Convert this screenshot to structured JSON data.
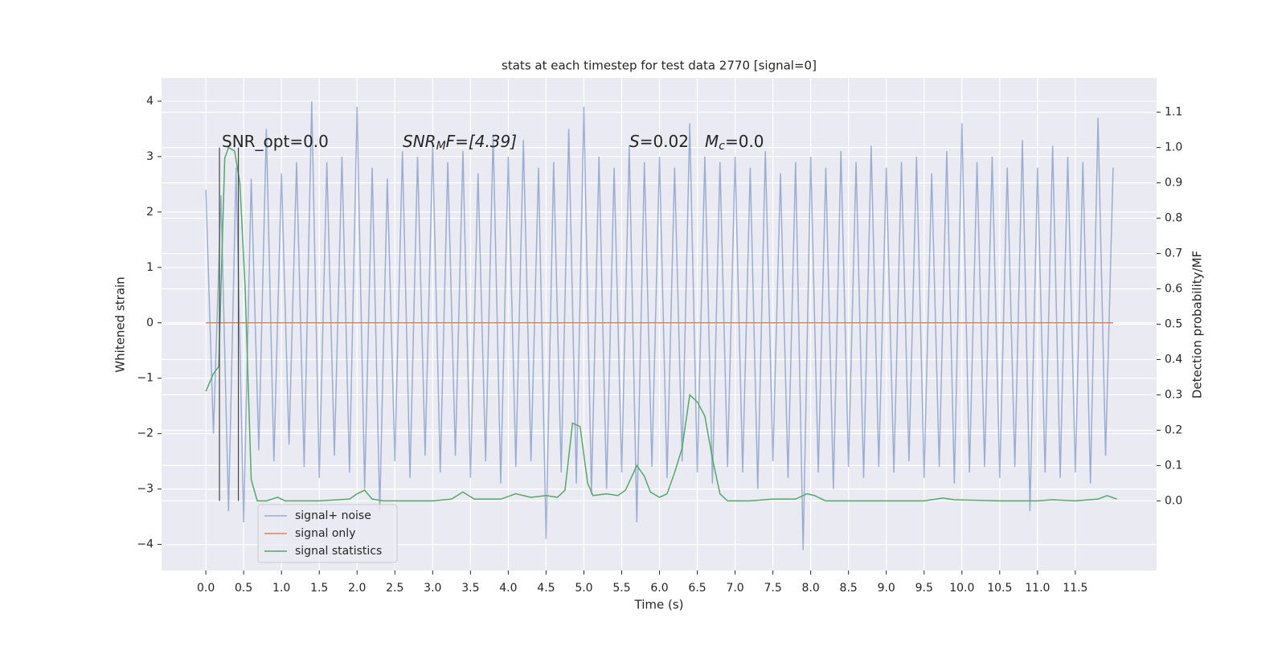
{
  "chart_data": {
    "type": "line",
    "title": "stats at each timestep for test data 2770 [signal=0]",
    "xlabel": "Time (s)",
    "ylabel": "Whitened strain",
    "y2label": "Detection probability/MF",
    "annotations": [
      {
        "parts": [
          "SNR_opt=0.0"
        ]
      },
      {
        "parts": [
          "SNR",
          "M",
          "F=[4.39]"
        ]
      },
      {
        "parts": [
          "S",
          "=0.02"
        ]
      },
      {
        "parts": [
          "M",
          "c",
          "=0.0"
        ]
      }
    ],
    "vlines": [
      {
        "x": 0.18,
        "y2": [
          0,
          1
        ],
        "color": "#444444"
      },
      {
        "x": 0.43,
        "y2": [
          0,
          1
        ],
        "color": "#444444"
      }
    ],
    "xlim": [
      -0.586,
      12.575
    ],
    "ylim": [
      -4.47,
      4.42
    ],
    "y2lim": [
      -0.197,
      1.197
    ],
    "xticks": [
      {
        "value": 0,
        "label": "0.0"
      },
      {
        "value": 0.5,
        "label": "0.5"
      },
      {
        "value": 1,
        "label": "1.0"
      },
      {
        "value": 1.5,
        "label": "1.5"
      },
      {
        "value": 2,
        "label": "2.0"
      },
      {
        "value": 2.5,
        "label": "2.5"
      },
      {
        "value": 3,
        "label": "3.0"
      },
      {
        "value": 3.5,
        "label": "3.5"
      },
      {
        "value": 4,
        "label": "4.0"
      },
      {
        "value": 4.5,
        "label": "4.5"
      },
      {
        "value": 5,
        "label": "5.0"
      },
      {
        "value": 5.5,
        "label": "5.5"
      },
      {
        "value": 6,
        "label": "6.0"
      },
      {
        "value": 6.5,
        "label": "6.5"
      },
      {
        "value": 7,
        "label": "7.0"
      },
      {
        "value": 7.5,
        "label": "7.5"
      },
      {
        "value": 8,
        "label": "8.0"
      },
      {
        "value": 8.5,
        "label": "8.5"
      },
      {
        "value": 9,
        "label": "9.0"
      },
      {
        "value": 9.5,
        "label": "9.5"
      },
      {
        "value": 10,
        "label": "10.0"
      },
      {
        "value": 10.5,
        "label": "10.5"
      },
      {
        "value": 11,
        "label": "11.0"
      },
      {
        "value": 11.5,
        "label": "11.5"
      }
    ],
    "yticks": [
      {
        "value": -4,
        "label": "−4"
      },
      {
        "value": -3,
        "label": "−3"
      },
      {
        "value": -2,
        "label": "−2"
      },
      {
        "value": -1,
        "label": "−1"
      },
      0,
      1,
      2,
      3,
      4
    ],
    "y2ticks": [
      {
        "value": 0,
        "label": "0.0"
      },
      {
        "value": 0.1,
        "label": "0.1"
      },
      {
        "value": 0.2,
        "label": "0.2"
      },
      {
        "value": 0.3,
        "label": "0.3"
      },
      {
        "value": 0.4,
        "label": "0.4"
      },
      {
        "value": 0.5,
        "label": "0.5"
      },
      {
        "value": 0.6,
        "label": "0.6"
      },
      {
        "value": 0.7,
        "label": "0.7"
      },
      {
        "value": 0.8,
        "label": "0.8"
      },
      {
        "value": 0.9,
        "label": "0.9"
      },
      {
        "value": 1,
        "label": "1.0"
      },
      {
        "value": 1.1,
        "label": "1.1"
      }
    ],
    "grid": true,
    "legend": "lower left",
    "series": [
      {
        "name": "signal+ noise",
        "color": "#4c72b0",
        "opacity": 0.5,
        "x": [
          0,
          0.1,
          0.2,
          0.3,
          0.4,
          0.5,
          0.6,
          0.7,
          0.8,
          0.9,
          1,
          1.1,
          1.2,
          1.3,
          1.4,
          1.5,
          1.6,
          1.7,
          1.8,
          1.9,
          2,
          2.1,
          2.2,
          2.3,
          2.4,
          2.5,
          2.6,
          2.7,
          2.8,
          2.9,
          3,
          3.1,
          3.2,
          3.3,
          3.4,
          3.5,
          3.6,
          3.7,
          3.8,
          3.9,
          4,
          4.1,
          4.2,
          4.3,
          4.4,
          4.5,
          4.6,
          4.7,
          4.8,
          4.9,
          5,
          5.1,
          5.2,
          5.3,
          5.4,
          5.5,
          5.6,
          5.7,
          5.8,
          5.9,
          6,
          6.1,
          6.2,
          6.3,
          6.4,
          6.5,
          6.6,
          6.7,
          6.8,
          6.9,
          7,
          7.1,
          7.2,
          7.3,
          7.4,
          7.5,
          7.6,
          7.7,
          7.8,
          7.9,
          8,
          8.1,
          8.2,
          8.3,
          8.4,
          8.5,
          8.6,
          8.7,
          8.8,
          8.9,
          9,
          9.1,
          9.2,
          9.3,
          9.4,
          9.5,
          9.6,
          9.7,
          9.8,
          9.9,
          10,
          10.1,
          10.2,
          10.3,
          10.4,
          10.5,
          10.6,
          10.7,
          10.8,
          10.9,
          11,
          11.1,
          11.2,
          11.3,
          11.4,
          11.5,
          11.6,
          11.7,
          11.8,
          11.9,
          12
        ],
        "values": [
          2.4,
          -2.0,
          2.3,
          -3.4,
          2.8,
          -3.6,
          2.6,
          -2.3,
          3.5,
          -2.5,
          2.7,
          -2.2,
          2.9,
          -2.6,
          4.0,
          -2.8,
          2.9,
          -2.4,
          3.0,
          -2.7,
          3.9,
          -3.0,
          2.8,
          -3.4,
          2.6,
          -2.5,
          3.1,
          -2.8,
          3.0,
          -2.4,
          3.2,
          -2.7,
          2.9,
          -2.4,
          3.1,
          -2.8,
          2.7,
          -2.5,
          3.4,
          -2.9,
          3.0,
          -2.6,
          3.3,
          -2.5,
          2.8,
          -3.9,
          2.9,
          -2.7,
          3.5,
          -2.9,
          3.9,
          -3.1,
          3.0,
          -3.0,
          2.8,
          -2.7,
          3.2,
          -3.6,
          2.9,
          -2.6,
          3.0,
          -2.8,
          2.8,
          -2.5,
          3.6,
          -2.7,
          3.0,
          -2.9,
          2.9,
          -2.6,
          3.0,
          -2.7,
          2.8,
          -3.0,
          3.1,
          -2.5,
          2.7,
          -2.8,
          2.9,
          -4.1,
          3.0,
          -2.7,
          2.8,
          -3.0,
          3.1,
          -2.6,
          2.9,
          -2.8,
          3.2,
          -2.6,
          2.8,
          -2.7,
          2.9,
          -2.5,
          3.0,
          -2.8,
          2.7,
          -2.6,
          3.1,
          -2.9,
          3.6,
          -2.7,
          2.9,
          -2.6,
          3.0,
          -2.8,
          2.8,
          -2.6,
          3.3,
          -3.4,
          2.8,
          -2.7,
          3.2,
          -2.8,
          3.0,
          -2.7,
          2.9,
          -2.9,
          3.7,
          -2.4,
          2.8
        ]
      },
      {
        "name": "signal only",
        "color": "#dd8452",
        "x": [
          0,
          12
        ],
        "values": [
          0,
          0
        ]
      },
      {
        "name": "signal statistics",
        "color": "#55a868",
        "axis": "y2",
        "x": [
          0,
          0.1,
          0.17,
          0.25,
          0.3,
          0.38,
          0.45,
          0.52,
          0.6,
          0.68,
          0.8,
          0.95,
          1.05,
          1.5,
          1.9,
          2,
          2.1,
          2.2,
          2.35,
          3,
          3.25,
          3.4,
          3.55,
          3.9,
          4.1,
          4.3,
          4.5,
          4.65,
          4.75,
          4.85,
          4.95,
          5.05,
          5.12,
          5.3,
          5.45,
          5.55,
          5.7,
          5.8,
          5.88,
          6,
          6.1,
          6.2,
          6.3,
          6.4,
          6.5,
          6.6,
          6.7,
          6.8,
          6.9,
          7.2,
          7.5,
          7.8,
          7.95,
          8.05,
          8.2,
          9.5,
          9.75,
          9.9,
          10.5,
          11,
          11.2,
          11.5,
          11.8,
          11.92,
          12.05
        ],
        "values": [
          0.31,
          0.36,
          0.38,
          0.97,
          1.0,
          0.99,
          0.9,
          0.6,
          0.06,
          0.0,
          0.0,
          0.01,
          0.0,
          0.0,
          0.005,
          0.02,
          0.03,
          0.005,
          0.0,
          0.0,
          0.005,
          0.025,
          0.005,
          0.005,
          0.02,
          0.01,
          0.015,
          0.01,
          0.03,
          0.22,
          0.21,
          0.05,
          0.015,
          0.02,
          0.015,
          0.03,
          0.1,
          0.07,
          0.025,
          0.01,
          0.02,
          0.08,
          0.15,
          0.3,
          0.28,
          0.24,
          0.12,
          0.02,
          0.0,
          0.0,
          0.005,
          0.005,
          0.02,
          0.015,
          0.0,
          0.0,
          0.008,
          0.003,
          0.0,
          0.0,
          0.003,
          0.0,
          0.005,
          0.015,
          0.005
        ]
      }
    ]
  }
}
